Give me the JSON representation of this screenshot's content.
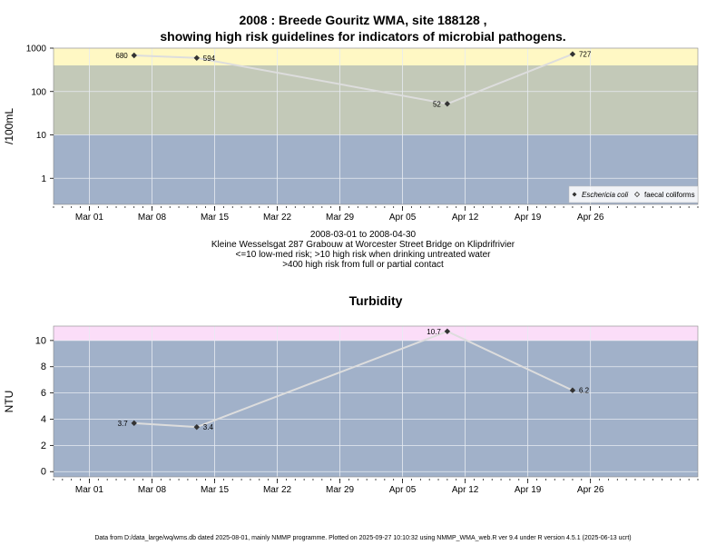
{
  "header": {
    "title_line1": "2008 : Breede Gouritz WMA, site 188128 ,",
    "title_line2": "showing high risk guidelines for indicators of microbial pathogens."
  },
  "caption": {
    "line1": "2008-03-01 to 2008-04-30",
    "line2": "Kleine Wesselsgat 287 Grabouw at Worcester Street Bridge on Klipdrifrivier",
    "line3": "<=10 low-med risk; >10 high risk when drinking untreated water",
    "line4": ">400 high risk from full or partial contact"
  },
  "footer": {
    "text": "Data from D:/data_large/wq/wms.db dated 2025-08-01, mainly NMMP programme. Plotted on 2025-09-27 10:10:32 using NMMP_WMA_web.R ver 9.4 under R version 4.5.1 (2025-06-13 ucrt)"
  },
  "colors": {
    "panel_bg": "#a1b1c9",
    "band_mid": "#c3c9b8",
    "band_high_micro": "#fff8c4",
    "band_high_turb": "#fbddf8",
    "line": "#dddddd",
    "point": "#333333",
    "grid": "#e8ecf2"
  },
  "chart_data": [
    {
      "type": "line",
      "title": "",
      "ylabel": "/100mL",
      "y_scale": "log10",
      "ylim": [
        0.25,
        1000
      ],
      "y_ticks": [
        1,
        10,
        100,
        1000
      ],
      "y_tick_labels": [
        "1",
        "10",
        "100",
        "1000"
      ],
      "xlim": [
        "2008-02-26",
        "2008-05-08"
      ],
      "x_ticks": [
        "2008-03-01",
        "2008-03-08",
        "2008-03-15",
        "2008-03-22",
        "2008-03-29",
        "2008-04-05",
        "2008-04-12",
        "2008-04-19",
        "2008-04-26"
      ],
      "x_tick_labels": [
        "Mar 01",
        "Mar 08",
        "Mar 15",
        "Mar 22",
        "Mar 29",
        "Apr 05",
        "Apr 12",
        "Apr 19",
        "Apr 26"
      ],
      "bands": [
        {
          "from": 0.25,
          "to": 10,
          "color": "#a1b1c9"
        },
        {
          "from": 10,
          "to": 400,
          "color": "#c3c9b8"
        },
        {
          "from": 400,
          "to": 1000,
          "color": "#fff8c4"
        }
      ],
      "legend": {
        "position": "bottom-right",
        "entries": [
          "Eschericia coli",
          "faecal coliforms"
        ]
      },
      "grid": true,
      "series": [
        {
          "name": "Eschericia coli",
          "x": [
            "2008-03-06",
            "2008-03-13",
            "2008-04-10",
            "2008-04-24"
          ],
          "y": [
            680,
            594,
            52,
            727
          ],
          "labels": [
            "680",
            "594",
            "52",
            "727"
          ],
          "label_side": [
            "left",
            "right",
            "left",
            "right"
          ]
        }
      ]
    },
    {
      "type": "line",
      "title": "Turbidity",
      "ylabel": "NTU",
      "y_scale": "linear",
      "ylim": [
        -0.4,
        11.1
      ],
      "y_ticks": [
        0,
        2,
        4,
        6,
        8,
        10
      ],
      "y_tick_labels": [
        "0",
        "2",
        "4",
        "6",
        "8",
        "10"
      ],
      "xlim": [
        "2008-02-26",
        "2008-05-08"
      ],
      "x_ticks": [
        "2008-03-01",
        "2008-03-08",
        "2008-03-15",
        "2008-03-22",
        "2008-03-29",
        "2008-04-05",
        "2008-04-12",
        "2008-04-19",
        "2008-04-26"
      ],
      "x_tick_labels": [
        "Mar 01",
        "Mar 08",
        "Mar 15",
        "Mar 22",
        "Mar 29",
        "Apr 05",
        "Apr 12",
        "Apr 19",
        "Apr 26"
      ],
      "bands": [
        {
          "from": -0.4,
          "to": 10,
          "color": "#a1b1c9"
        },
        {
          "from": 10,
          "to": 11.1,
          "color": "#fbddf8"
        }
      ],
      "grid": true,
      "series": [
        {
          "x": [
            "2008-03-06",
            "2008-03-13",
            "2008-04-10",
            "2008-04-24"
          ],
          "y": [
            3.7,
            3.4,
            10.7,
            6.2
          ],
          "labels": [
            "3.7",
            "3.4",
            "10.7",
            "6.2"
          ],
          "label_side": [
            "left",
            "right",
            "left",
            "right"
          ]
        }
      ]
    }
  ]
}
